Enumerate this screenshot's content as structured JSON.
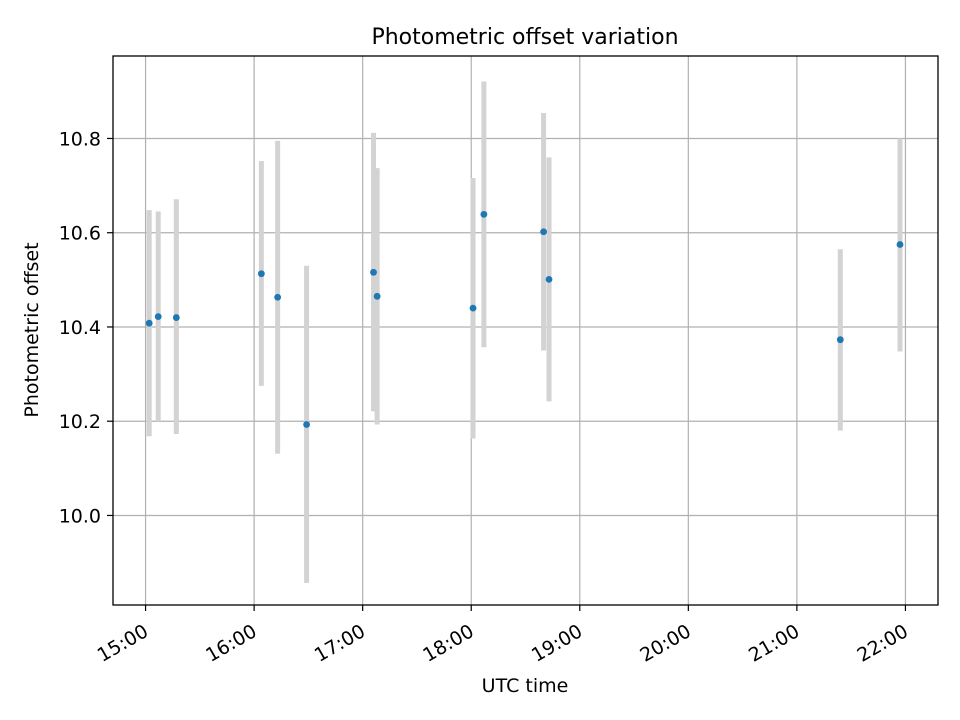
{
  "chart_data": {
    "type": "scatter",
    "title": "Photometric offset variation",
    "xlabel": "UTC time",
    "ylabel": "Photometric offset",
    "grid": true,
    "legend": "none",
    "x_ticks": [
      "15:00",
      "16:00",
      "17:00",
      "18:00",
      "19:00",
      "20:00",
      "21:00",
      "22:00"
    ],
    "y_ticks": [
      "10.0",
      "10.2",
      "10.4",
      "10.6",
      "10.8"
    ],
    "xlim": [
      "14:42",
      "22:18"
    ],
    "ylim": [
      9.81,
      10.975
    ],
    "series": [
      {
        "points": [
          {
            "x": "15:02",
            "y": 10.408,
            "ylo": 10.168,
            "yhi": 10.648
          },
          {
            "x": "15:07",
            "y": 10.422,
            "ylo": 10.2,
            "yhi": 10.645
          },
          {
            "x": "15:17",
            "y": 10.42,
            "ylo": 10.173,
            "yhi": 10.671
          },
          {
            "x": "16:04",
            "y": 10.513,
            "ylo": 10.275,
            "yhi": 10.752
          },
          {
            "x": "16:13",
            "y": 10.463,
            "ylo": 10.131,
            "yhi": 10.795
          },
          {
            "x": "16:29",
            "y": 10.193,
            "ylo": 9.857,
            "yhi": 10.53
          },
          {
            "x": "17:06",
            "y": 10.516,
            "ylo": 10.221,
            "yhi": 10.812
          },
          {
            "x": "17:08",
            "y": 10.465,
            "ylo": 10.193,
            "yhi": 10.737
          },
          {
            "x": "18:01",
            "y": 10.44,
            "ylo": 10.163,
            "yhi": 10.716
          },
          {
            "x": "18:07",
            "y": 10.639,
            "ylo": 10.357,
            "yhi": 10.921
          },
          {
            "x": "18:40",
            "y": 10.602,
            "ylo": 10.35,
            "yhi": 10.854
          },
          {
            "x": "18:43",
            "y": 10.501,
            "ylo": 10.242,
            "yhi": 10.76
          },
          {
            "x": "21:24",
            "y": 10.373,
            "ylo": 10.18,
            "yhi": 10.565
          },
          {
            "x": "21:57",
            "y": 10.575,
            "ylo": 10.348,
            "yhi": 10.8
          }
        ]
      }
    ],
    "colors": {
      "point": "#1f77b4",
      "errorbar": "#d3d3d3",
      "grid": "#b0b0b0",
      "axes": "#000000"
    }
  }
}
